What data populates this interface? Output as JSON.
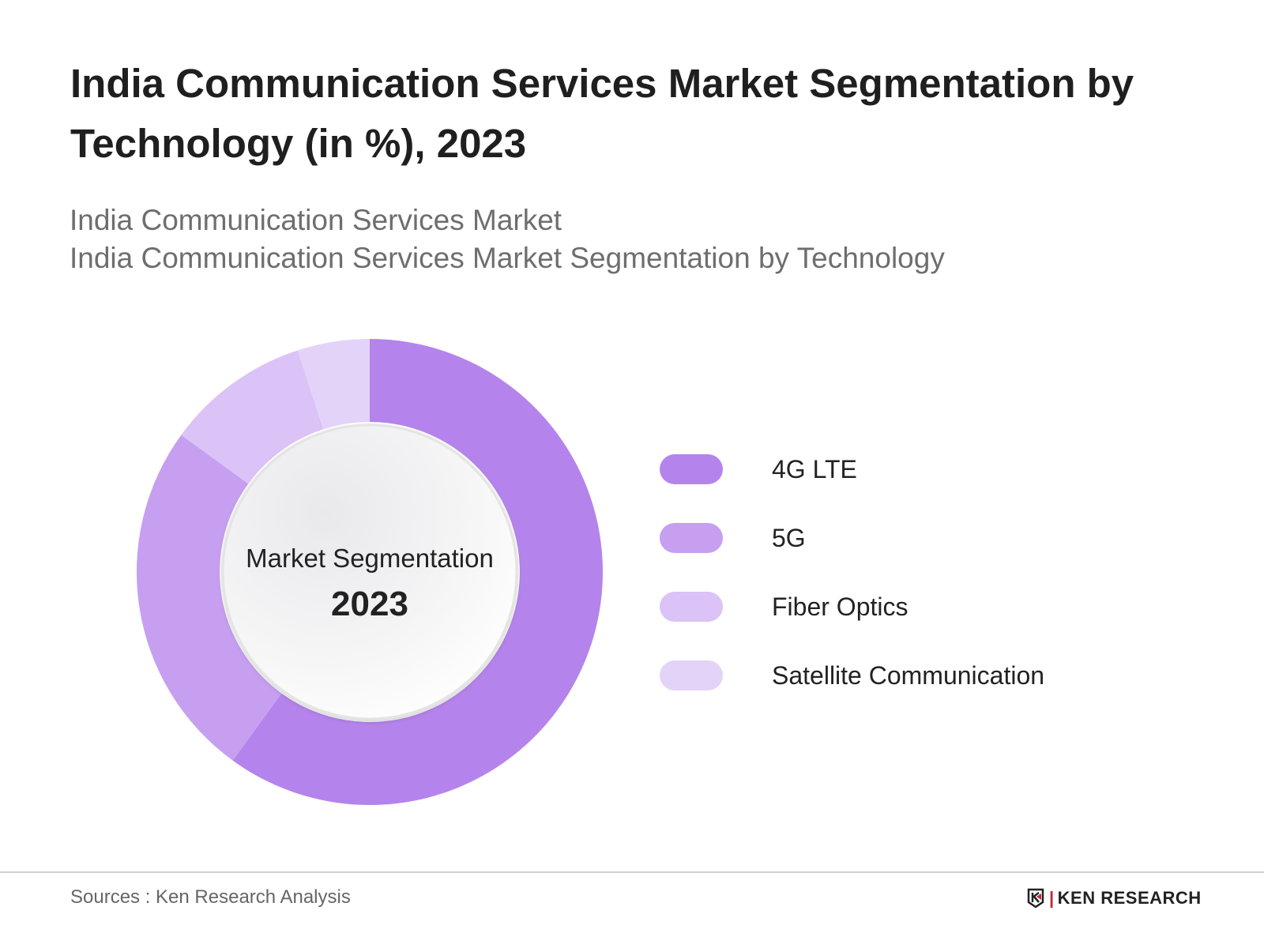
{
  "header": {
    "title": "India Communication Services Market Segmentation by Technology (in %), 2023",
    "subtitle_1": "India Communication Services Market",
    "subtitle_2": "India Communication Services Market Segmentation by Technology"
  },
  "chart_data": {
    "type": "pie",
    "variant": "donut",
    "categories": [
      "4G LTE",
      "5G",
      "Fiber Optics",
      "Satellite Communication"
    ],
    "values": [
      60,
      25,
      10,
      5
    ],
    "colors": [
      "#b484ec",
      "#c69ff0",
      "#dbc2f7",
      "#e4d3f8"
    ],
    "center_label": "Market Segmentation",
    "center_year": "2023",
    "legend_placement": "right"
  },
  "footer": {
    "source": "Sources : Ken Research Analysis",
    "logo_text": "KEN RESEARCH"
  }
}
